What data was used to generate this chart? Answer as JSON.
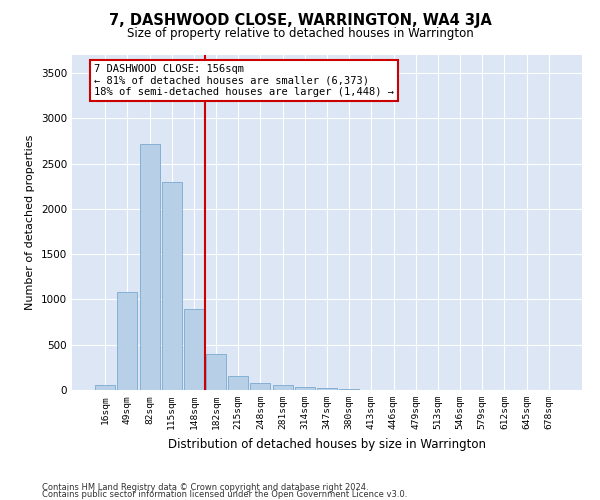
{
  "title": "7, DASHWOOD CLOSE, WARRINGTON, WA4 3JA",
  "subtitle": "Size of property relative to detached houses in Warrington",
  "xlabel": "Distribution of detached houses by size in Warrington",
  "ylabel": "Number of detached properties",
  "bar_color": "#b8cfe8",
  "bar_edge_color": "#7aaad0",
  "background_color": "#dce6f5",
  "grid_color": "#ffffff",
  "vline_color": "#cc0000",
  "vline_pos": 4.5,
  "annotation_text": "7 DASHWOOD CLOSE: 156sqm\n← 81% of detached houses are smaller (6,373)\n18% of semi-detached houses are larger (1,448) →",
  "annotation_box_color": "#ffffff",
  "annotation_box_edge_color": "#cc0000",
  "categories": [
    "16sqm",
    "49sqm",
    "82sqm",
    "115sqm",
    "148sqm",
    "182sqm",
    "215sqm",
    "248sqm",
    "281sqm",
    "314sqm",
    "347sqm",
    "380sqm",
    "413sqm",
    "446sqm",
    "479sqm",
    "513sqm",
    "546sqm",
    "579sqm",
    "612sqm",
    "645sqm",
    "678sqm"
  ],
  "values": [
    50,
    1080,
    2720,
    2300,
    900,
    400,
    160,
    80,
    55,
    35,
    18,
    10,
    5,
    4,
    2,
    1,
    1,
    0,
    0,
    0,
    0
  ],
  "ylim": [
    0,
    3700
  ],
  "yticks": [
    0,
    500,
    1000,
    1500,
    2000,
    2500,
    3000,
    3500
  ],
  "footer_line1": "Contains HM Land Registry data © Crown copyright and database right 2024.",
  "footer_line2": "Contains public sector information licensed under the Open Government Licence v3.0."
}
